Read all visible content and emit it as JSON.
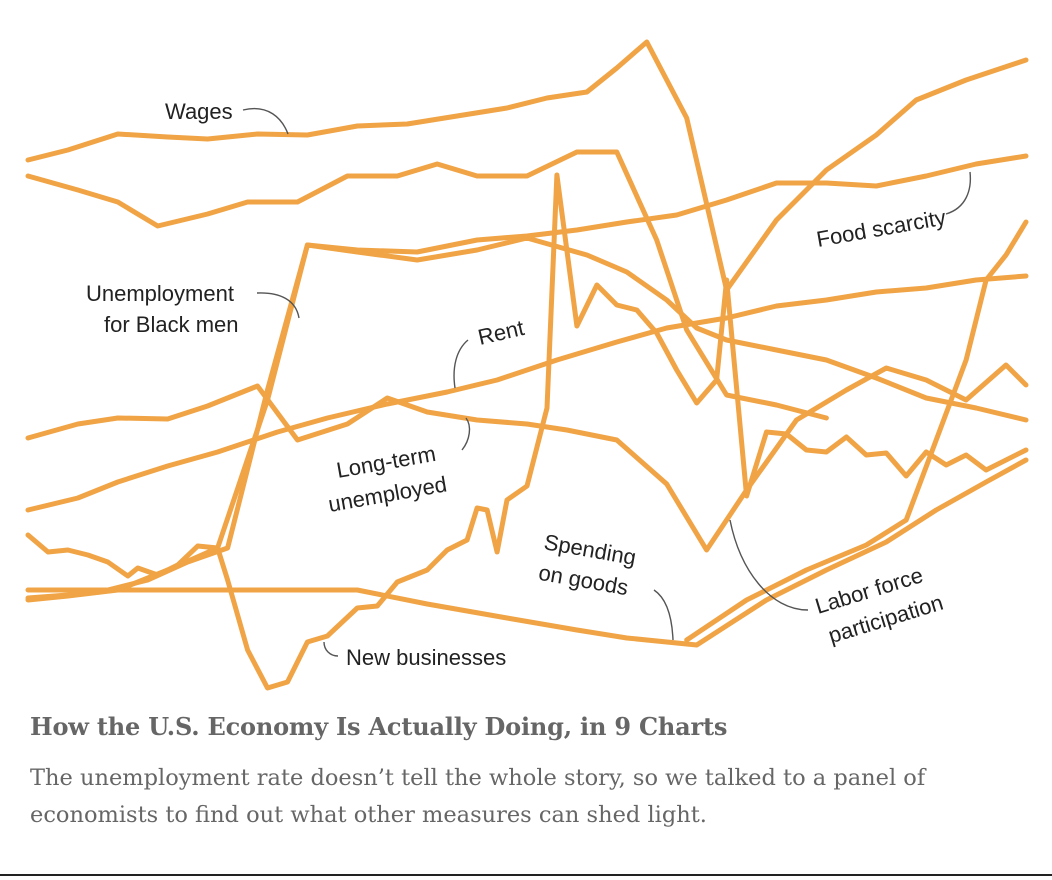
{
  "article": {
    "headline": "How the U.S. Economy Is Actually Doing, in 9 Charts",
    "summary": "The unemployment rate doesn’t tell the whole story, so we talked to a panel of economists to find out what other measures can shed light."
  },
  "chart_data": {
    "type": "line",
    "title": "",
    "xlabel": "",
    "ylabel": "",
    "grid": false,
    "legend": "inline labels",
    "color": "#f0a445",
    "series": [
      {
        "key": "wages",
        "name": "Wages",
        "values": [
          [
            0,
            160
          ],
          [
            4,
            150
          ],
          [
            9,
            134
          ],
          [
            14,
            137
          ],
          [
            18,
            139
          ],
          [
            23,
            134
          ],
          [
            28,
            135
          ],
          [
            33,
            126
          ],
          [
            38,
            124
          ],
          [
            43,
            116
          ],
          [
            48,
            108
          ],
          [
            52,
            98
          ],
          [
            56,
            92
          ],
          [
            59,
            68
          ],
          [
            62,
            42
          ],
          [
            66,
            118
          ],
          [
            70,
            290
          ],
          [
            75,
            220
          ],
          [
            80,
            170
          ],
          [
            85,
            135
          ],
          [
            89,
            100
          ],
          [
            94,
            80
          ],
          [
            100,
            60
          ]
        ]
      },
      {
        "key": "food_scarcity",
        "name": "Food scarcity",
        "values": [
          [
            0,
            176
          ],
          [
            5,
            190
          ],
          [
            9,
            202
          ],
          [
            13,
            226
          ],
          [
            18,
            214
          ],
          [
            22,
            202
          ],
          [
            27,
            202
          ],
          [
            32,
            176
          ],
          [
            37,
            176
          ],
          [
            41,
            164
          ],
          [
            45,
            176
          ],
          [
            50,
            176
          ],
          [
            55,
            152
          ],
          [
            59,
            152
          ],
          [
            63,
            240
          ],
          [
            66,
            330
          ],
          [
            70,
            395
          ],
          [
            75,
            405
          ],
          [
            80,
            418
          ]
        ]
      },
      {
        "key": "unemployment_black_men",
        "name": "Unemployment\nfor Black men",
        "values": [
          [
            0,
            600
          ],
          [
            4,
            596
          ],
          [
            9,
            590
          ],
          [
            14,
            570
          ],
          [
            19,
            548
          ],
          [
            24,
            400
          ],
          [
            28,
            245
          ],
          [
            33,
            252
          ],
          [
            39,
            260
          ],
          [
            45,
            250
          ],
          [
            50,
            238
          ],
          [
            56,
            255
          ],
          [
            60,
            272
          ],
          [
            64,
            300
          ],
          [
            67,
            328
          ],
          [
            70,
            340
          ],
          [
            75,
            350
          ],
          [
            80,
            360
          ],
          [
            85,
            378
          ],
          [
            90,
            398
          ],
          [
            95,
            408
          ],
          [
            100,
            420
          ]
        ]
      },
      {
        "key": "rent",
        "name": "Rent",
        "values": [
          [
            0,
            510
          ],
          [
            5,
            498
          ],
          [
            9,
            482
          ],
          [
            14,
            466
          ],
          [
            19,
            452
          ],
          [
            25,
            432
          ],
          [
            30,
            418
          ],
          [
            36,
            404
          ],
          [
            42,
            392
          ],
          [
            47,
            380
          ],
          [
            53,
            360
          ],
          [
            59,
            342
          ],
          [
            64,
            328
          ],
          [
            70,
            318
          ],
          [
            75,
            306
          ],
          [
            80,
            300
          ],
          [
            85,
            292
          ],
          [
            90,
            288
          ],
          [
            95,
            280
          ],
          [
            100,
            276
          ]
        ]
      },
      {
        "key": "long_term_unemployed",
        "name": "Long-term\nunemployed",
        "values": [
          [
            0,
            438
          ],
          [
            5,
            424
          ],
          [
            9,
            418
          ],
          [
            14,
            419
          ],
          [
            18,
            406
          ],
          [
            23,
            386
          ],
          [
            27,
            440
          ],
          [
            32,
            424
          ],
          [
            36,
            398
          ],
          [
            40,
            412
          ],
          [
            45,
            420
          ],
          [
            50,
            424
          ],
          [
            54,
            430
          ],
          [
            59,
            440
          ],
          [
            64,
            484
          ],
          [
            68,
            550
          ],
          [
            72,
            490
          ],
          [
            77,
            420
          ],
          [
            82,
            390
          ],
          [
            86,
            368
          ],
          [
            90,
            380
          ],
          [
            94,
            400
          ],
          [
            98,
            365
          ],
          [
            100,
            385
          ]
        ]
      },
      {
        "key": "spending_on_goods",
        "name": "Spending\non goods",
        "values": [
          [
            0,
            590
          ],
          [
            9,
            590
          ],
          [
            18,
            590
          ],
          [
            27,
            590
          ],
          [
            33,
            590
          ],
          [
            40,
            604
          ],
          [
            48,
            618
          ],
          [
            55,
            630
          ],
          [
            60,
            638
          ],
          [
            67,
            645
          ],
          [
            74,
            600
          ],
          [
            80,
            570
          ],
          [
            86,
            542
          ],
          [
            91,
            510
          ],
          [
            96,
            482
          ],
          [
            100,
            460
          ]
        ]
      },
      {
        "key": "labor_force_participation",
        "name": "Labor force\nparticipation",
        "values": [
          [
            0,
            535
          ],
          [
            2,
            552
          ],
          [
            4,
            550
          ],
          [
            6,
            555
          ],
          [
            8,
            562
          ],
          [
            10,
            576
          ],
          [
            11,
            568
          ],
          [
            13,
            575
          ],
          [
            15,
            565
          ],
          [
            17,
            546
          ],
          [
            19,
            548
          ],
          [
            20,
            580
          ],
          [
            22,
            650
          ],
          [
            24,
            688
          ],
          [
            26,
            682
          ],
          [
            28,
            642
          ],
          [
            30,
            636
          ],
          [
            33,
            608
          ],
          [
            35,
            606
          ],
          [
            37,
            582
          ],
          [
            40,
            570
          ],
          [
            42,
            550
          ],
          [
            44,
            540
          ],
          [
            45,
            508
          ],
          [
            46,
            510
          ],
          [
            47,
            552
          ],
          [
            48,
            500
          ],
          [
            50,
            486
          ],
          [
            52,
            408
          ],
          [
            53,
            175
          ],
          [
            55,
            326
          ],
          [
            57,
            285
          ],
          [
            59,
            305
          ],
          [
            61,
            310
          ],
          [
            63,
            333
          ],
          [
            65,
            370
          ],
          [
            67,
            403
          ],
          [
            69,
            380
          ],
          [
            70,
            280
          ],
          [
            72,
            496
          ],
          [
            74,
            432
          ],
          [
            76,
            434
          ],
          [
            78,
            450
          ],
          [
            80,
            452
          ],
          [
            82,
            437
          ],
          [
            84,
            455
          ],
          [
            86,
            453
          ],
          [
            88,
            476
          ],
          [
            90,
            452
          ],
          [
            92,
            465
          ],
          [
            94,
            455
          ],
          [
            96,
            470
          ],
          [
            100,
            450
          ]
        ]
      },
      {
        "key": "new_businesses",
        "name": "New businesses",
        "values": [
          [
            0,
            598
          ],
          [
            4,
            595
          ],
          [
            8,
            590
          ],
          [
            12,
            580
          ],
          [
            16,
            562
          ],
          [
            20,
            548
          ],
          [
            24,
            390
          ],
          [
            28,
            245
          ],
          [
            33,
            250
          ],
          [
            39,
            252
          ],
          [
            45,
            240
          ],
          [
            50,
            236
          ],
          [
            55,
            230
          ],
          [
            60,
            222
          ],
          [
            65,
            215
          ],
          [
            70,
            200
          ],
          [
            75,
            183
          ],
          [
            80,
            183
          ],
          [
            85,
            186
          ],
          [
            90,
            176
          ],
          [
            95,
            164
          ],
          [
            100,
            156
          ]
        ]
      },
      {
        "key": "rent_late_rise",
        "name": "",
        "values": [
          [
            66,
            640
          ],
          [
            72,
            600
          ],
          [
            78,
            570
          ],
          [
            84,
            545
          ],
          [
            88,
            520
          ],
          [
            91,
            440
          ],
          [
            94,
            360
          ],
          [
            96,
            280
          ],
          [
            98,
            255
          ],
          [
            100,
            222
          ]
        ]
      }
    ]
  }
}
